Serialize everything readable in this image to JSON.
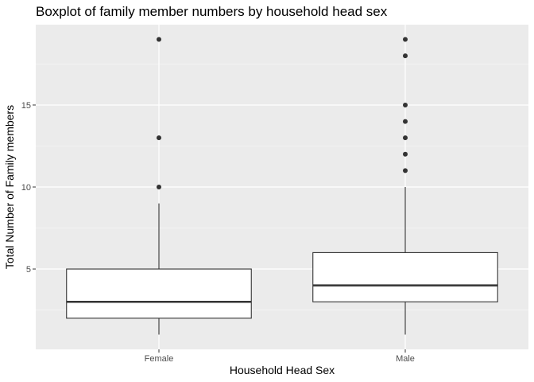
{
  "chart_data": {
    "type": "boxplot",
    "title": "Boxplot of family member numbers by household head sex",
    "xlabel": "Household Head Sex",
    "ylabel": "Total Number of Family members",
    "categories": [
      "Female",
      "Male"
    ],
    "y_ticks": [
      5,
      10,
      15
    ],
    "ylim": [
      0.1,
      19.9
    ],
    "grid": true,
    "legend": "none",
    "boxes": [
      {
        "category": "Female",
        "whisker_low": 1,
        "q1": 2,
        "median": 3,
        "q3": 5,
        "whisker_high": 9,
        "outliers": [
          10,
          13,
          19
        ]
      },
      {
        "category": "Male",
        "whisker_low": 1,
        "q1": 3,
        "median": 4,
        "q3": 6,
        "whisker_high": 10,
        "outliers": [
          11,
          12,
          13,
          14,
          15,
          18,
          19
        ]
      }
    ],
    "colors": {
      "panel": "#ebebeb",
      "grid_major": "#ffffff",
      "grid_minor": "#f5f5f5",
      "box_fill": "#ffffff",
      "box_line": "#333333",
      "point": "#333333"
    }
  }
}
